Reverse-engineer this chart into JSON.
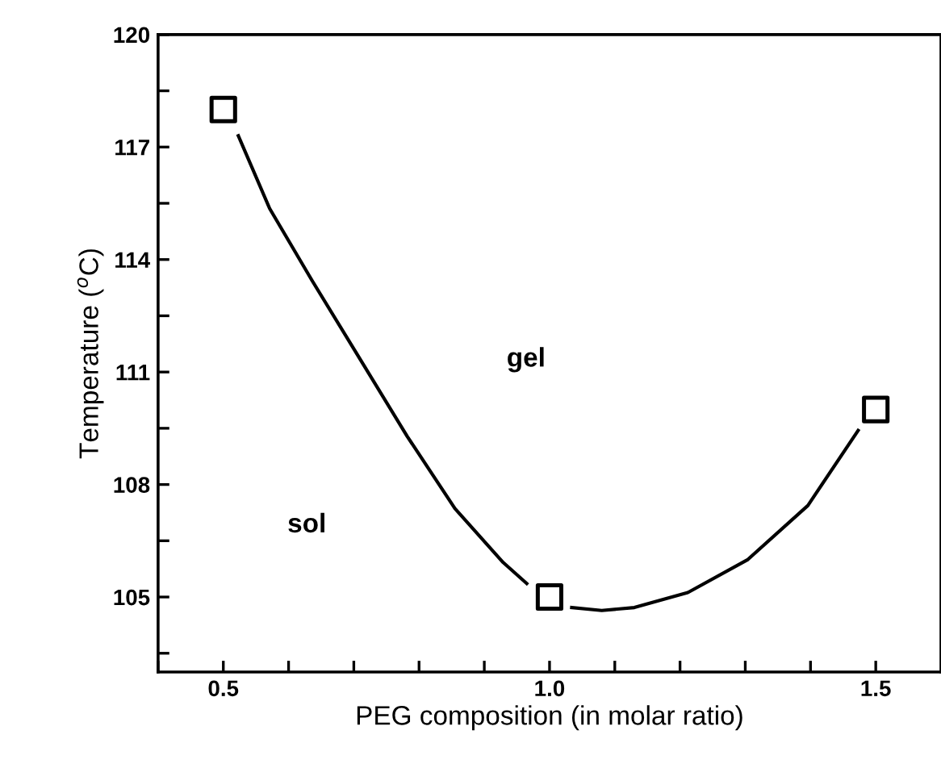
{
  "chart_data": {
    "type": "line",
    "xlabel": "PEG composition (in molar ratio)",
    "ylabel": "Temperature ($^{o}$C)",
    "xlim": [
      0.4,
      1.6
    ],
    "ylim": [
      103,
      120
    ],
    "xticks": [
      {
        "value": 0.4,
        "label": null
      },
      0.5,
      {
        "value": 0.6,
        "label": null
      },
      {
        "value": 0.7,
        "label": null
      },
      {
        "value": 0.8,
        "label": null
      },
      {
        "value": 0.9,
        "label": null
      },
      {
        "value": 1.0,
        "label": "1.0"
      },
      {
        "value": 1.1,
        "label": null
      },
      {
        "value": 1.2,
        "label": null
      },
      {
        "value": 1.3,
        "label": null
      },
      {
        "value": 1.4,
        "label": null
      },
      1.5
    ],
    "yticks": [
      {
        "value": 103.5,
        "label": null
      },
      105,
      {
        "value": 106.5,
        "label": null
      },
      108,
      {
        "value": 109.5,
        "label": null
      },
      111,
      {
        "value": 112.5,
        "label": null
      },
      114,
      {
        "value": 115.5,
        "label": null
      },
      117,
      {
        "value": 118.5,
        "label": null
      },
      120
    ],
    "grid": false,
    "legend": false,
    "series": [
      {
        "type": "scatter",
        "color": "#000000",
        "marker": "square",
        "x": [
          0.5,
          1.0,
          1.5
        ],
        "values": [
          118,
          105,
          110
        ]
      },
      {
        "color": "#000000",
        "marker": "none",
        "line_style": "solid",
        "x": [
          0.523,
          0.571,
          0.636,
          0.709,
          0.782,
          0.855,
          0.929,
          0.965,
          null,
          1.034,
          1.08,
          1.13,
          1.212,
          1.304,
          1.396,
          1.473
        ],
        "values": [
          117.3,
          115.36,
          113.44,
          111.36,
          109.28,
          107.36,
          105.92,
          105.36,
          null,
          104.72,
          104.64,
          104.72,
          105.12,
          106.0,
          107.44,
          109.44
        ]
      }
    ],
    "annotations": [
      "gel",
      "sol"
    ]
  }
}
